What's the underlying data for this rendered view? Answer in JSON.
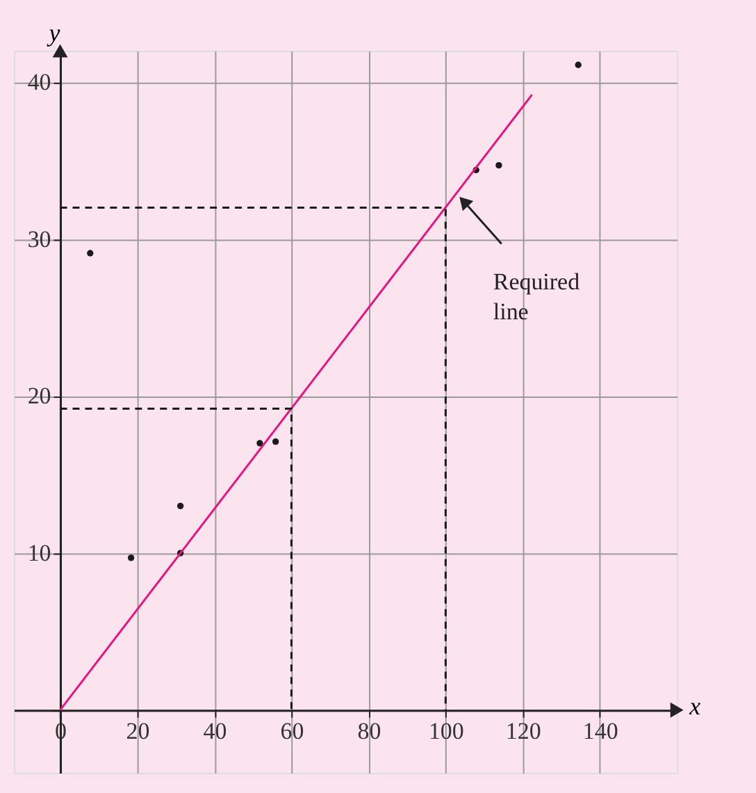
{
  "chart_data": {
    "type": "scatter",
    "xlabel": "x",
    "ylabel": "y",
    "xlim": [
      -12,
      160
    ],
    "ylim": [
      -4,
      42
    ],
    "xticks": [
      0,
      20,
      40,
      60,
      80,
      100,
      120,
      140
    ],
    "yticks": [
      {
        "value": 0,
        "label": null
      },
      10,
      20,
      30,
      40
    ],
    "grid": true,
    "series": [
      {
        "color": "#1a1a1a",
        "marker": "circle",
        "x": [
          7.8,
          18.4,
          31.2,
          31.2,
          51.8,
          55.9,
          107.9,
          113.8,
          134.4
        ],
        "values": [
          29.1,
          9.7,
          13.0,
          10.0,
          17.0,
          17.1,
          34.4,
          34.7,
          41.1
        ]
      },
      {
        "type": "line",
        "color": "#e6157f",
        "line_style": "solid",
        "x": [
          0,
          122.4
        ],
        "values": [
          0,
          39.2
        ]
      },
      {
        "type": "line",
        "color": "#1a1a1a",
        "line_style": "dashed",
        "x": [
          0,
          60,
          60
        ],
        "values": [
          19.2,
          19.2,
          0
        ]
      },
      {
        "type": "line",
        "color": "#1a1a1a",
        "line_style": "dashed",
        "x": [
          0,
          100,
          100
        ],
        "values": [
          32,
          32,
          0
        ]
      }
    ],
    "annotations": [
      {
        "text": "Required line",
        "x": 103.5,
        "y": 33
      }
    ]
  }
}
